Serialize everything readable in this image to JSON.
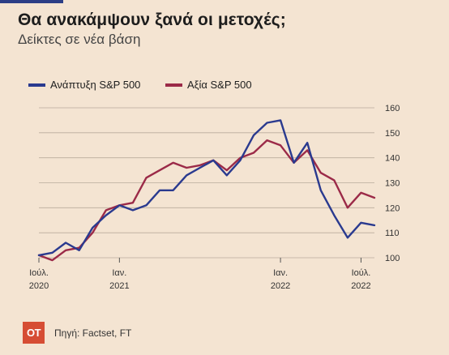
{
  "header": {
    "title": "Θα ανακάμψουν ξανά οι μετοχές;",
    "subtitle": "Δείκτες σε νέα βάση"
  },
  "footer": {
    "logo_text": "ΟΤ",
    "source": "Πηγή: Factset, FT"
  },
  "colors": {
    "growth": "#2a3a8f",
    "value": "#9b2a48",
    "grid": "#b9ab9b",
    "accent": "#d64d34"
  },
  "chart_data": {
    "type": "line",
    "title": "Θα ανακάμψουν ξανά οι μετοχές;",
    "subtitle": "Δείκτες σε νέα βάση",
    "ylim": [
      100,
      160
    ],
    "yticks": [
      100,
      110,
      120,
      130,
      140,
      150,
      160
    ],
    "grid": true,
    "legend": "top-left",
    "xlim": [
      "2020-07",
      "2022-08"
    ],
    "xticks": [
      {
        "date": "2020-07",
        "label1": "Ιούλ.",
        "label2": "2020"
      },
      {
        "date": "2021-01",
        "label1": "Ιαν.",
        "label2": "2021"
      },
      {
        "date": "2022-01",
        "label1": "Ιαν.",
        "label2": "2022"
      },
      {
        "date": "2022-07",
        "label1": "Ιούλ.",
        "label2": "2022"
      }
    ],
    "x": [
      "2020-07",
      "2020-08",
      "2020-09",
      "2020-10",
      "2020-11",
      "2020-12",
      "2021-01",
      "2021-02",
      "2021-03",
      "2021-04",
      "2021-05",
      "2021-06",
      "2021-07",
      "2021-08",
      "2021-09",
      "2021-10",
      "2021-11",
      "2021-12",
      "2022-01",
      "2022-02",
      "2022-03",
      "2022-04",
      "2022-05",
      "2022-06",
      "2022-07",
      "2022-08"
    ],
    "series": [
      {
        "name": "Ανάπτυξη S&P 500",
        "color": "#2a3a8f",
        "values": [
          101,
          102,
          106,
          103,
          112,
          117,
          121,
          119,
          121,
          127,
          127,
          133,
          136,
          139,
          133,
          139,
          149,
          154,
          155,
          138,
          146,
          127,
          117,
          108,
          114,
          113
        ]
      },
      {
        "name": "Αξία S&P 500",
        "color": "#9b2a48",
        "values": [
          101,
          99,
          103,
          104,
          110,
          119,
          121,
          122,
          132,
          135,
          138,
          136,
          137,
          139,
          135,
          140,
          142,
          147,
          145,
          138,
          143,
          134,
          131,
          120,
          126,
          124
        ]
      }
    ]
  }
}
